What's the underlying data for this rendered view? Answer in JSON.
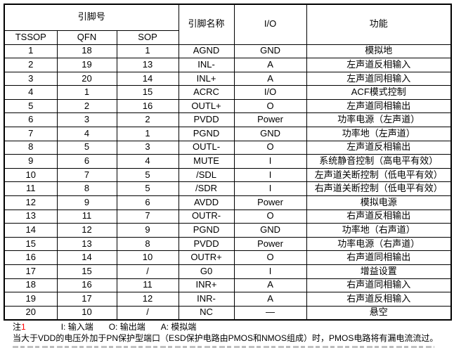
{
  "table": {
    "header": {
      "pin_no_group": "引脚号",
      "sub_cols": [
        "TSSOP",
        "QFN",
        "SOP"
      ],
      "pin_name": "引脚名称",
      "io": "I/O",
      "function": "功能"
    },
    "rows": [
      [
        "1",
        "18",
        "1",
        "AGND",
        "GND",
        "模拟地"
      ],
      [
        "2",
        "19",
        "13",
        "INL-",
        "A",
        "左声道反相输入"
      ],
      [
        "3",
        "20",
        "14",
        "INL+",
        "A",
        "左声道同相输入"
      ],
      [
        "4",
        "1",
        "15",
        "ACRC",
        "I/O",
        "ACF模式控制"
      ],
      [
        "5",
        "2",
        "16",
        "OUTL+",
        "O",
        "左声道同相输出"
      ],
      [
        "6",
        "3",
        "2",
        "PVDD",
        "Power",
        "功率电源（左声道）"
      ],
      [
        "7",
        "4",
        "1",
        "PGND",
        "GND",
        "功率地（左声道）"
      ],
      [
        "8",
        "5",
        "3",
        "OUTL-",
        "O",
        "左声道反相输出"
      ],
      [
        "9",
        "6",
        "4",
        "MUTE",
        "I",
        "系统静音控制（高电平有效）"
      ],
      [
        "10",
        "7",
        "5",
        "/SDL",
        "I",
        "左声道关断控制（低电平有效）"
      ],
      [
        "11",
        "8",
        "5",
        "/SDR",
        "I",
        "右声道关断控制（低电平有效）"
      ],
      [
        "12",
        "9",
        "6",
        "AVDD",
        "Power",
        "模拟电源"
      ],
      [
        "13",
        "11",
        "7",
        "OUTR-",
        "O",
        "右声道反相输出"
      ],
      [
        "14",
        "12",
        "9",
        "PGND",
        "GND",
        "功率地（右声道）"
      ],
      [
        "15",
        "13",
        "8",
        "PVDD",
        "Power",
        "功率电源（右声道）"
      ],
      [
        "16",
        "14",
        "10",
        "OUTR+",
        "O",
        "右声道同相输出"
      ],
      [
        "17",
        "15",
        "/",
        "G0",
        "I",
        "增益设置"
      ],
      [
        "18",
        "16",
        "11",
        "INR+",
        "A",
        "右声道同相输入"
      ],
      [
        "19",
        "17",
        "12",
        "INR-",
        "A",
        "右声道反相输入"
      ],
      [
        "20",
        "10",
        "/",
        "NC",
        "—",
        "悬空"
      ]
    ]
  },
  "notes": {
    "label": "注",
    "label_sup": "1",
    "legend": [
      "I: 输入端",
      "O: 输出端",
      "A: 模拟端"
    ],
    "line2": "当大于VDD的电压外加于PN保护型端口（ESD保护电路由PMOS和NMOS组成）时，PMOS电路将有漏电流流过。"
  },
  "colors": {
    "border": "#000000",
    "text": "#000000",
    "note_superscript": "#ff0000"
  }
}
